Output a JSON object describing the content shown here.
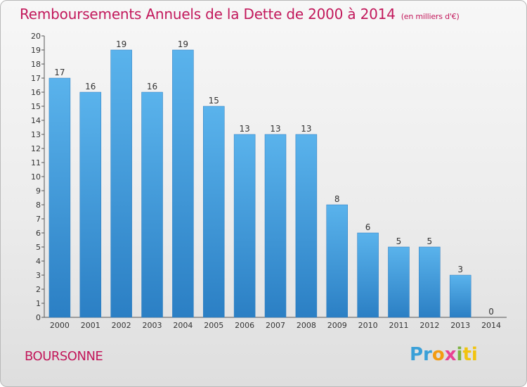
{
  "title": "Remboursements Annuels de la Dette de 2000 à 2014",
  "subtitle": "(en milliers d'€)",
  "commune": "BOURSONNE",
  "brand": {
    "letters": [
      "Pr",
      "o",
      "x",
      "i",
      "ti"
    ],
    "colors": [
      "#3aa0d8",
      "#f39c12",
      "#e84393",
      "#7cb342",
      "#f1c40f"
    ]
  },
  "chart_data": {
    "type": "bar",
    "categories": [
      "2000",
      "2001",
      "2002",
      "2003",
      "2004",
      "2005",
      "2006",
      "2007",
      "2008",
      "2009",
      "2010",
      "2011",
      "2012",
      "2013",
      "2014"
    ],
    "values": [
      17,
      16,
      19,
      16,
      19,
      15,
      13,
      13,
      13,
      8,
      6,
      5,
      5,
      3,
      0
    ],
    "y_ticks": [
      0,
      1,
      2,
      3,
      4,
      5,
      6,
      7,
      8,
      9,
      10,
      11,
      12,
      13,
      14,
      15,
      16,
      17,
      18,
      19,
      20
    ],
    "ylim": [
      0,
      20
    ],
    "bar_color": "#3a97dc",
    "title_color": "#c2185b",
    "grid": false,
    "legend": "none"
  }
}
